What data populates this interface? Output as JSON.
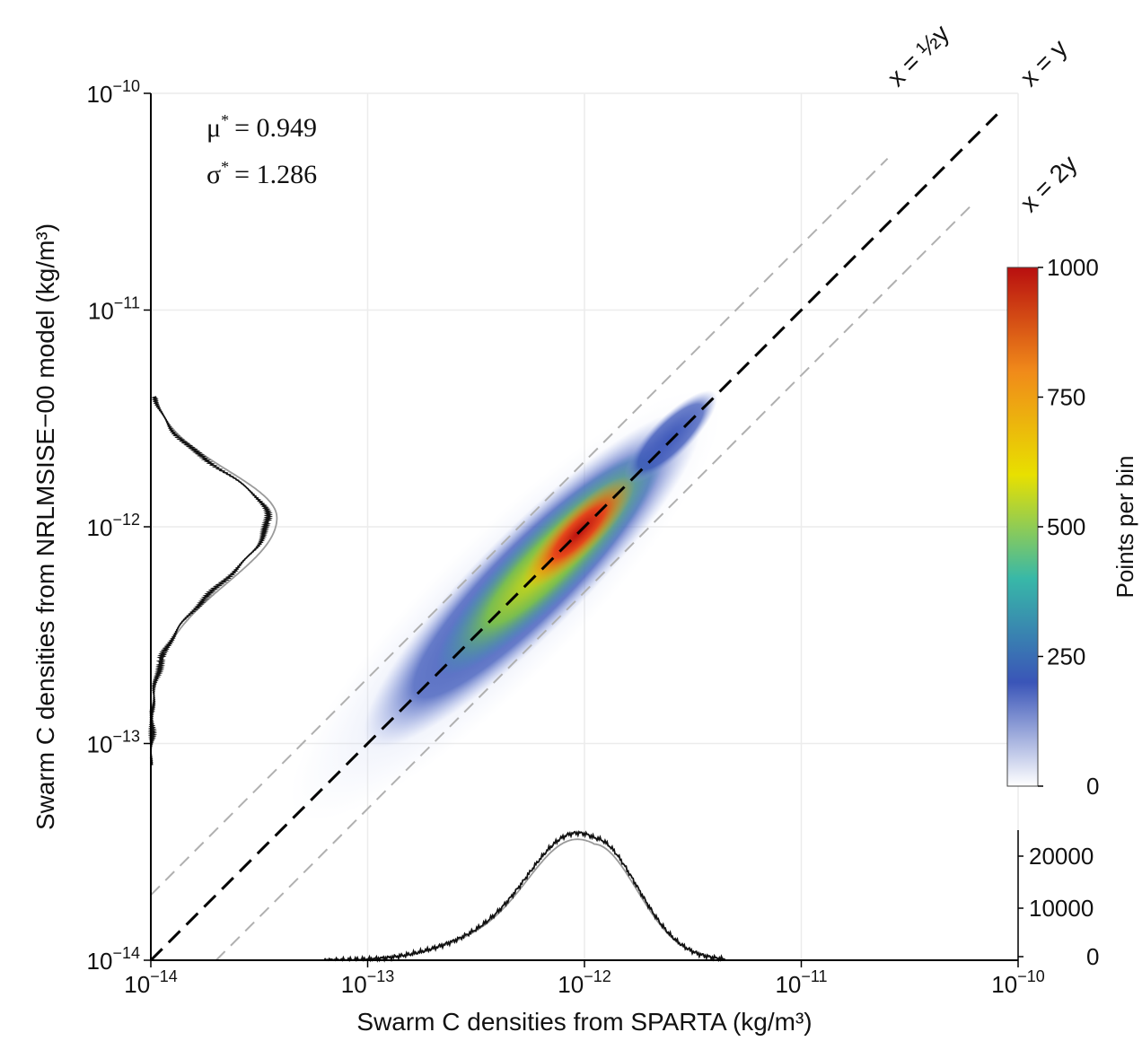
{
  "chart_data": {
    "type": "heatmap",
    "xlabel": "Swarm C densities from SPARTA (kg/m³)",
    "ylabel": "Swarm C densities from NRLMSISE−00 model (kg/m³)",
    "x_scale": "log",
    "y_scale": "log",
    "xlim": [
      1e-14,
      1e-10
    ],
    "ylim": [
      1e-14,
      1e-10
    ],
    "x_ticks": [
      {
        "value": 1e-14,
        "base": "10",
        "exp": "−14"
      },
      {
        "value": 1e-13,
        "base": "10",
        "exp": "−13"
      },
      {
        "value": 1e-12,
        "base": "10",
        "exp": "−12"
      },
      {
        "value": 1e-11,
        "base": "10",
        "exp": "−11"
      },
      {
        "value": 1e-10,
        "base": "10",
        "exp": "−10"
      }
    ],
    "y_ticks": [
      {
        "value": 1e-14,
        "base": "10",
        "exp": "−14"
      },
      {
        "value": 1e-13,
        "base": "10",
        "exp": "−13"
      },
      {
        "value": 1e-12,
        "base": "10",
        "exp": "−12"
      },
      {
        "value": 1e-11,
        "base": "10",
        "exp": "−11"
      },
      {
        "value": 1e-10,
        "base": "10",
        "exp": "−10"
      }
    ],
    "stats": {
      "mu_label": "μ",
      "mu_value": "= 0.949",
      "sigma_label": "σ",
      "sigma_value": "= 1.286",
      "star": "*"
    },
    "reference_lines": [
      {
        "label": "x = ½y",
        "ratio": 2.0,
        "color": "#b0b0b0",
        "style": "dashed"
      },
      {
        "label": "x = y",
        "ratio": 1.0,
        "color": "#000000",
        "style": "dashed"
      },
      {
        "label": "x = 2y",
        "ratio": 0.5,
        "color": "#b0b0b0",
        "style": "dashed"
      }
    ],
    "density_blob": {
      "center": [
        1e-12,
        1e-12
      ],
      "extent_x": [
        1.5e-13,
        3.5e-12
      ],
      "peak_points_per_bin": 1000
    },
    "colorbar": {
      "label": "Points per bin",
      "ticks": [
        0,
        250,
        500,
        750,
        1000
      ],
      "range": [
        0,
        1000
      ],
      "colors": [
        "#ffffff",
        "#3a55b8",
        "#38b8a8",
        "#e8e000",
        "#f08a1a",
        "#b80f0f"
      ]
    },
    "x_histogram": {
      "yticks": [
        0,
        10000,
        20000
      ],
      "ylim": [
        0,
        25000
      ],
      "peak_x": 1.1e-12,
      "peak_count": 23500
    },
    "y_histogram": {
      "peak_y": 1.1e-12
    }
  }
}
